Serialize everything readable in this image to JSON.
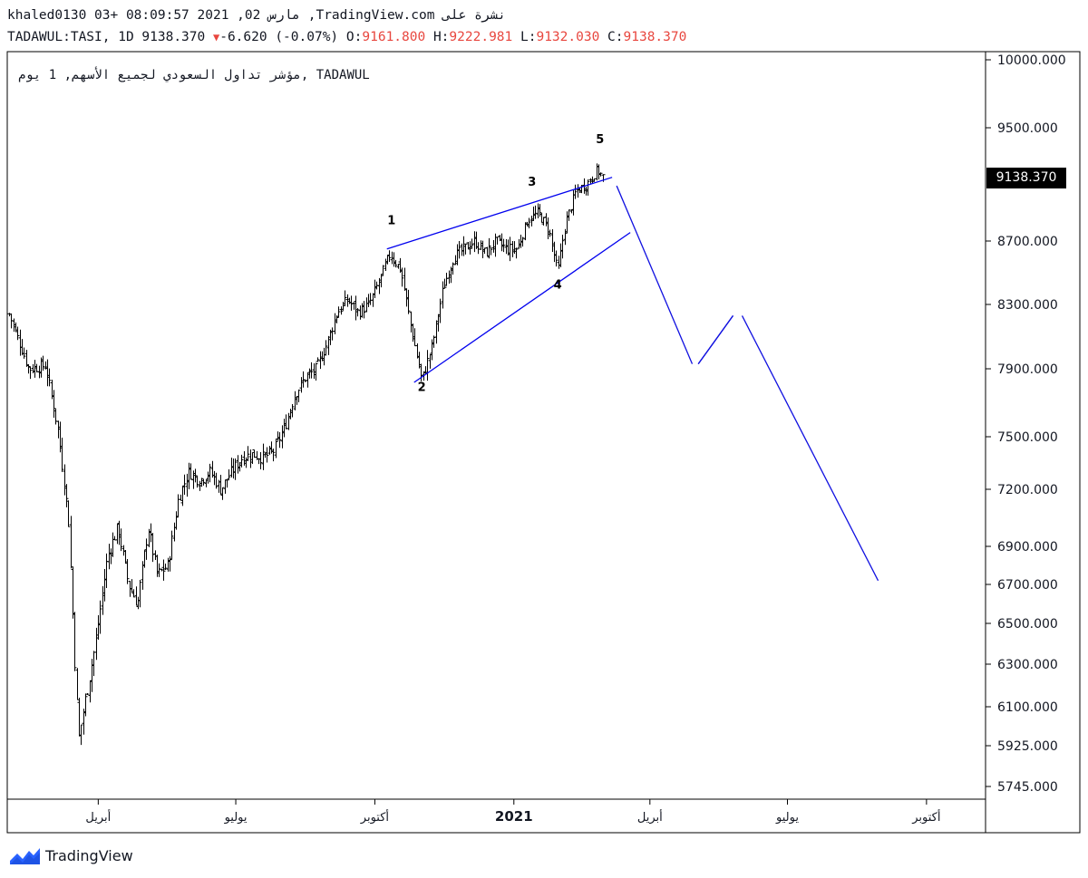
{
  "header": {
    "line1": "khaled0130 03+ 08:09:57 2021 ,02 مارس ,TradingView.com نشرة على",
    "symbol": "TADAWUL:TASI, 1D 9138.370",
    "change": "-6.620 (-0.07%)",
    "open_label": "O:",
    "open": "9161.800",
    "high_label": "H:",
    "high": "9222.981",
    "low_label": "L:",
    "low": "9132.030",
    "close_label": "C:",
    "close": "9138.370"
  },
  "last_price": "9138.370",
  "footer": {
    "brand": "TradingView",
    "logo_icon": "tradingview-logo-icon"
  },
  "colors": {
    "candles": "#000000",
    "wedge": "#0000ee",
    "projection": "#1010e0",
    "down": "#e8473f",
    "axis_text": "#131722"
  },
  "chart_data": {
    "type": "ohlc",
    "title": "مؤشر تداول السعودي لجميع الأسهم, 1 يوم, TADAWUL",
    "xlabel": "",
    "ylabel": "",
    "x_ticks": [
      "أبريل",
      "يوليو",
      "أكتوبر",
      "2021",
      "أبريل",
      "يوليو",
      "أكتوبر"
    ],
    "y_ticks": [
      "10000.000",
      "9500.000",
      "8700.000",
      "8300.000",
      "7900.000",
      "7500.000",
      "7200.000",
      "6900.000",
      "6700.000",
      "6500.000",
      "6300.000",
      "6100.000",
      "5925.000",
      "5745.000"
    ],
    "ylim": [
      5745,
      10000
    ],
    "grid": false,
    "wave_labels": [
      "1",
      "2",
      "3",
      "4",
      "5"
    ],
    "price_path": [
      {
        "x": "2020-02-02",
        "y": 8240
      },
      {
        "x": "2020-02-15",
        "y": 7900
      },
      {
        "x": "2020-02-26",
        "y": 7920
      },
      {
        "x": "2020-03-05",
        "y": 7550
      },
      {
        "x": "2020-03-12",
        "y": 7050
      },
      {
        "x": "2020-03-17",
        "y": 6200
      },
      {
        "x": "2020-03-19",
        "y": 5959
      },
      {
        "x": "2020-03-25",
        "y": 6200
      },
      {
        "x": "2020-03-30",
        "y": 6400
      },
      {
        "x": "2020-04-07",
        "y": 6850
      },
      {
        "x": "2020-04-14",
        "y": 7000
      },
      {
        "x": "2020-04-21",
        "y": 6700
      },
      {
        "x": "2020-04-27",
        "y": 6600
      },
      {
        "x": "2020-05-04",
        "y": 7000
      },
      {
        "x": "2020-05-10",
        "y": 6750
      },
      {
        "x": "2020-05-17",
        "y": 6800
      },
      {
        "x": "2020-05-24",
        "y": 7150
      },
      {
        "x": "2020-05-31",
        "y": 7300
      },
      {
        "x": "2020-06-07",
        "y": 7250
      },
      {
        "x": "2020-06-14",
        "y": 7300
      },
      {
        "x": "2020-06-21",
        "y": 7200
      },
      {
        "x": "2020-06-28",
        "y": 7300
      },
      {
        "x": "2020-07-05",
        "y": 7380
      },
      {
        "x": "2020-07-12",
        "y": 7400
      },
      {
        "x": "2020-07-19",
        "y": 7380
      },
      {
        "x": "2020-07-26",
        "y": 7420
      },
      {
        "x": "2020-08-02",
        "y": 7550
      },
      {
        "x": "2020-08-09",
        "y": 7750
      },
      {
        "x": "2020-08-16",
        "y": 7850
      },
      {
        "x": "2020-08-23",
        "y": 7900
      },
      {
        "x": "2020-08-30",
        "y": 8050
      },
      {
        "x": "2020-09-06",
        "y": 8250
      },
      {
        "x": "2020-09-13",
        "y": 8330
      },
      {
        "x": "2020-09-20",
        "y": 8250
      },
      {
        "x": "2020-09-27",
        "y": 8300
      },
      {
        "x": "2020-10-04",
        "y": 8450
      },
      {
        "x": "2020-10-11",
        "y": 8620
      },
      {
        "x": "2020-10-18",
        "y": 8520
      },
      {
        "x": "2020-10-25",
        "y": 8150
      },
      {
        "x": "2020-11-01",
        "y": 7830
      },
      {
        "x": "2020-11-08",
        "y": 8050
      },
      {
        "x": "2020-11-15",
        "y": 8400
      },
      {
        "x": "2020-11-22",
        "y": 8600
      },
      {
        "x": "2020-11-29",
        "y": 8650
      },
      {
        "x": "2020-12-06",
        "y": 8700
      },
      {
        "x": "2020-12-13",
        "y": 8620
      },
      {
        "x": "2020-12-20",
        "y": 8700
      },
      {
        "x": "2020-12-27",
        "y": 8650
      },
      {
        "x": "2021-01-03",
        "y": 8650
      },
      {
        "x": "2021-01-10",
        "y": 8850
      },
      {
        "x": "2021-01-17",
        "y": 8900
      },
      {
        "x": "2021-01-24",
        "y": 8780
      },
      {
        "x": "2021-01-30",
        "y": 8500
      },
      {
        "x": "2021-02-04",
        "y": 8820
      },
      {
        "x": "2021-02-11",
        "y": 9050
      },
      {
        "x": "2021-02-18",
        "y": 9100
      },
      {
        "x": "2021-02-25",
        "y": 9200
      },
      {
        "x": "2021-03-02",
        "y": 9138.37
      }
    ],
    "wedge_lines": [
      {
        "name": "upper",
        "points": [
          {
            "x": "2020-10-09",
            "y": 8650
          },
          {
            "x": "2021-03-07",
            "y": 9150
          }
        ]
      },
      {
        "name": "lower",
        "points": [
          {
            "x": "2020-10-27",
            "y": 7820
          },
          {
            "x": "2021-03-19",
            "y": 8760
          }
        ]
      }
    ],
    "projection": [
      {
        "x": "2021-03-10",
        "y": 9090
      },
      {
        "x": "2021-04-29",
        "y": 7930
      },
      {
        "x": "2021-05-03",
        "y": 7930
      },
      {
        "x": "2021-05-26",
        "y": 8230
      },
      {
        "x": "2021-06-01",
        "y": 8230
      },
      {
        "x": "2021-08-30",
        "y": 6720
      }
    ]
  }
}
